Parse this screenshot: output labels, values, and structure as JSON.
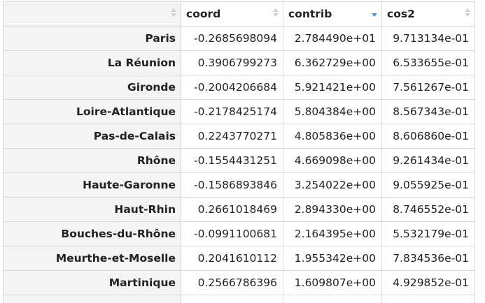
{
  "table": {
    "columns": [
      {
        "label": "",
        "sortable": true,
        "sort_state": "none"
      },
      {
        "label": "coord",
        "sortable": true,
        "sort_state": "none"
      },
      {
        "label": "contrib",
        "sortable": true,
        "sort_state": "descending"
      },
      {
        "label": "cos2",
        "sortable": true,
        "sort_state": "none"
      }
    ],
    "rows": [
      {
        "name": "Paris",
        "coord": "-0.2685698094",
        "contrib": "2.784490e+01",
        "cos2": "9.713134e-01"
      },
      {
        "name": "La Réunion",
        "coord": "0.3906799273",
        "contrib": "6.362729e+00",
        "cos2": "6.533655e-01"
      },
      {
        "name": "Gironde",
        "coord": "-0.2004206684",
        "contrib": "5.921421e+00",
        "cos2": "7.561267e-01"
      },
      {
        "name": "Loire-Atlantique",
        "coord": "-0.2178425174",
        "contrib": "5.804384e+00",
        "cos2": "8.567343e-01"
      },
      {
        "name": "Pas-de-Calais",
        "coord": "0.2243770271",
        "contrib": "4.805836e+00",
        "cos2": "8.606860e-01"
      },
      {
        "name": "Rhône",
        "coord": "-0.1554431251",
        "contrib": "4.669098e+00",
        "cos2": "9.261434e-01"
      },
      {
        "name": "Haute-Garonne",
        "coord": "-0.1586893846",
        "contrib": "3.254022e+00",
        "cos2": "9.055925e-01"
      },
      {
        "name": "Haut-Rhin",
        "coord": "0.2661018469",
        "contrib": "2.894330e+00",
        "cos2": "8.746552e-01"
      },
      {
        "name": "Bouches-du-Rhône",
        "coord": "-0.0991100681",
        "contrib": "2.164395e+00",
        "cos2": "5.532179e-01"
      },
      {
        "name": "Meurthe-et-Moselle",
        "coord": "0.2041610112",
        "contrib": "1.955342e+00",
        "cos2": "7.834536e-01"
      },
      {
        "name": "Martinique",
        "coord": "0.2566786396",
        "contrib": "1.609807e+00",
        "cos2": "4.929852e-01"
      }
    ]
  },
  "colors": {
    "sort_active": "#4a90d9",
    "sort_inactive": "#d0d0d0",
    "border": "#d9d9d9",
    "rowname_bg": "#f4f4f4"
  }
}
